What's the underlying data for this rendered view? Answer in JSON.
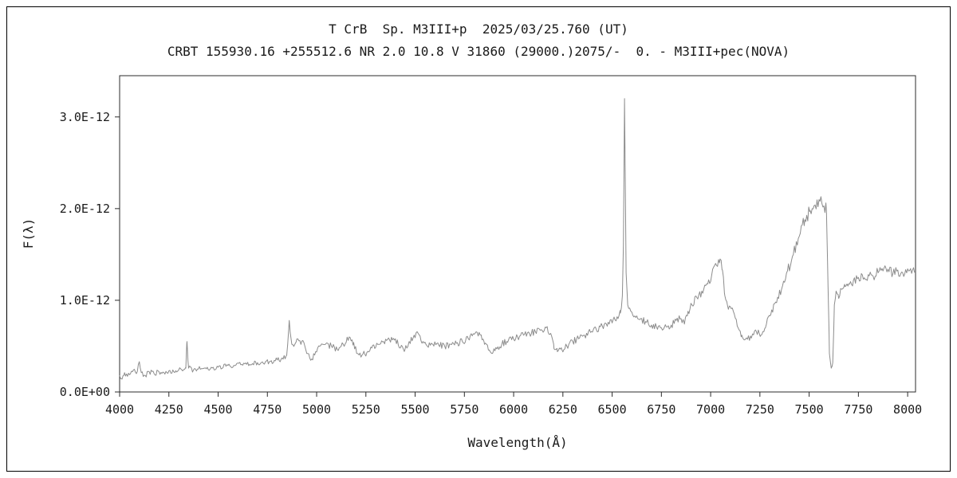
{
  "chart_data": {
    "type": "line",
    "title": "T CrB  Sp. M3III+p  2025/03/25.760 (UT)",
    "subtitle": "CRBT 155930.16 +255512.6 NR 2.0 10.8 V 31860 (29000.)2075/-  0. - M3III+pec(NOVA)",
    "xlabel": "Wavelength(Å)",
    "ylabel": "F(λ)",
    "xlim": [
      4000,
      8040
    ],
    "ylim": [
      0,
      3.45
    ],
    "y_value_scale": "1e-12",
    "grid": false,
    "legend": false,
    "x_ticks": [
      4000,
      4250,
      4500,
      4750,
      5000,
      5250,
      5500,
      5750,
      6000,
      6250,
      6500,
      6750,
      7000,
      7250,
      7500,
      7750,
      8000
    ],
    "y_ticks": [
      {
        "value": 0,
        "label": "0.0E+00"
      },
      {
        "value": 1,
        "label": "1.0E-12"
      },
      {
        "value": 2,
        "label": "2.0E-12"
      },
      {
        "value": 3,
        "label": "3.0E-12"
      }
    ],
    "colors": {
      "line": "#8c8c8c",
      "frame": "#2b2b2b",
      "text": "#1a1a1a",
      "background": "#ffffff"
    },
    "noise": {
      "seed": 20250325,
      "step": 5,
      "base": 0.02,
      "scale": 0.03
    },
    "series": [
      {
        "name": "T CrB",
        "points": [
          [
            4000,
            0.18
          ],
          [
            4012,
            0.14
          ],
          [
            4025,
            0.21
          ],
          [
            4040,
            0.17
          ],
          [
            4055,
            0.2
          ],
          [
            4070,
            0.24
          ],
          [
            4085,
            0.2
          ],
          [
            4100,
            0.33
          ],
          [
            4110,
            0.21
          ],
          [
            4130,
            0.18
          ],
          [
            4150,
            0.22
          ],
          [
            4175,
            0.2
          ],
          [
            4200,
            0.22
          ],
          [
            4225,
            0.21
          ],
          [
            4250,
            0.23
          ],
          [
            4275,
            0.22
          ],
          [
            4300,
            0.24
          ],
          [
            4320,
            0.23
          ],
          [
            4336,
            0.26
          ],
          [
            4342,
            0.55
          ],
          [
            4350,
            0.26
          ],
          [
            4375,
            0.24
          ],
          [
            4400,
            0.25
          ],
          [
            4430,
            0.26
          ],
          [
            4460,
            0.25
          ],
          [
            4500,
            0.27
          ],
          [
            4540,
            0.28
          ],
          [
            4580,
            0.29
          ],
          [
            4620,
            0.3
          ],
          [
            4660,
            0.3
          ],
          [
            4700,
            0.32
          ],
          [
            4730,
            0.31
          ],
          [
            4760,
            0.33
          ],
          [
            4790,
            0.34
          ],
          [
            4820,
            0.36
          ],
          [
            4848,
            0.4
          ],
          [
            4861,
            0.78
          ],
          [
            4874,
            0.52
          ],
          [
            4895,
            0.54
          ],
          [
            4915,
            0.56
          ],
          [
            4935,
            0.54
          ],
          [
            4955,
            0.42
          ],
          [
            4975,
            0.36
          ],
          [
            4995,
            0.44
          ],
          [
            5015,
            0.5
          ],
          [
            5045,
            0.52
          ],
          [
            5075,
            0.5
          ],
          [
            5105,
            0.46
          ],
          [
            5135,
            0.52
          ],
          [
            5165,
            0.6
          ],
          [
            5188,
            0.54
          ],
          [
            5205,
            0.42
          ],
          [
            5230,
            0.4
          ],
          [
            5255,
            0.43
          ],
          [
            5280,
            0.48
          ],
          [
            5310,
            0.52
          ],
          [
            5340,
            0.55
          ],
          [
            5370,
            0.57
          ],
          [
            5400,
            0.58
          ],
          [
            5425,
            0.48
          ],
          [
            5448,
            0.46
          ],
          [
            5470,
            0.55
          ],
          [
            5495,
            0.62
          ],
          [
            5515,
            0.64
          ],
          [
            5540,
            0.55
          ],
          [
            5562,
            0.5
          ],
          [
            5590,
            0.52
          ],
          [
            5620,
            0.51
          ],
          [
            5650,
            0.5
          ],
          [
            5680,
            0.52
          ],
          [
            5710,
            0.53
          ],
          [
            5740,
            0.55
          ],
          [
            5770,
            0.58
          ],
          [
            5800,
            0.63
          ],
          [
            5825,
            0.65
          ],
          [
            5852,
            0.52
          ],
          [
            5878,
            0.45
          ],
          [
            5895,
            0.43
          ],
          [
            5915,
            0.47
          ],
          [
            5940,
            0.52
          ],
          [
            5965,
            0.55
          ],
          [
            5990,
            0.57
          ],
          [
            6020,
            0.6
          ],
          [
            6050,
            0.62
          ],
          [
            6080,
            0.64
          ],
          [
            6110,
            0.66
          ],
          [
            6140,
            0.68
          ],
          [
            6165,
            0.7
          ],
          [
            6188,
            0.64
          ],
          [
            6205,
            0.47
          ],
          [
            6222,
            0.44
          ],
          [
            6245,
            0.46
          ],
          [
            6270,
            0.5
          ],
          [
            6300,
            0.55
          ],
          [
            6330,
            0.58
          ],
          [
            6360,
            0.62
          ],
          [
            6390,
            0.65
          ],
          [
            6420,
            0.68
          ],
          [
            6450,
            0.72
          ],
          [
            6480,
            0.76
          ],
          [
            6505,
            0.79
          ],
          [
            6525,
            0.82
          ],
          [
            6542,
            0.86
          ],
          [
            6552,
            1.05
          ],
          [
            6557,
            1.6
          ],
          [
            6561,
            2.6
          ],
          [
            6563,
            3.2
          ],
          [
            6566,
            2.45
          ],
          [
            6571,
            1.3
          ],
          [
            6579,
            0.95
          ],
          [
            6600,
            0.87
          ],
          [
            6625,
            0.83
          ],
          [
            6650,
            0.8
          ],
          [
            6675,
            0.76
          ],
          [
            6700,
            0.73
          ],
          [
            6725,
            0.71
          ],
          [
            6750,
            0.7
          ],
          [
            6775,
            0.71
          ],
          [
            6800,
            0.73
          ],
          [
            6825,
            0.78
          ],
          [
            6850,
            0.8
          ],
          [
            6867,
            0.74
          ],
          [
            6885,
            0.88
          ],
          [
            6905,
            0.95
          ],
          [
            6930,
            1.03
          ],
          [
            6955,
            1.1
          ],
          [
            6980,
            1.18
          ],
          [
            7005,
            1.27
          ],
          [
            7030,
            1.38
          ],
          [
            7048,
            1.45
          ],
          [
            7060,
            1.33
          ],
          [
            7072,
            1.05
          ],
          [
            7085,
            0.95
          ],
          [
            7100,
            0.93
          ],
          [
            7115,
            0.88
          ],
          [
            7135,
            0.72
          ],
          [
            7158,
            0.62
          ],
          [
            7182,
            0.59
          ],
          [
            7208,
            0.6
          ],
          [
            7232,
            0.66
          ],
          [
            7255,
            0.62
          ],
          [
            7278,
            0.7
          ],
          [
            7300,
            0.83
          ],
          [
            7330,
            0.98
          ],
          [
            7360,
            1.12
          ],
          [
            7390,
            1.32
          ],
          [
            7420,
            1.5
          ],
          [
            7450,
            1.7
          ],
          [
            7478,
            1.88
          ],
          [
            7505,
            1.98
          ],
          [
            7530,
            2.04
          ],
          [
            7555,
            2.08
          ],
          [
            7575,
            2.03
          ],
          [
            7588,
            1.97
          ],
          [
            7596,
            1.15
          ],
          [
            7603,
            0.42
          ],
          [
            7612,
            0.26
          ],
          [
            7620,
            0.32
          ],
          [
            7628,
            0.95
          ],
          [
            7637,
            1.1
          ],
          [
            7650,
            1.02
          ],
          [
            7665,
            1.12
          ],
          [
            7682,
            1.15
          ],
          [
            7700,
            1.18
          ],
          [
            7725,
            1.22
          ],
          [
            7750,
            1.25
          ],
          [
            7775,
            1.23
          ],
          [
            7800,
            1.28
          ],
          [
            7825,
            1.26
          ],
          [
            7850,
            1.3
          ],
          [
            7875,
            1.32
          ],
          [
            7900,
            1.34
          ],
          [
            7925,
            1.29
          ],
          [
            7950,
            1.33
          ],
          [
            7975,
            1.3
          ],
          [
            8005,
            1.32
          ],
          [
            8040,
            1.3
          ]
        ]
      }
    ]
  }
}
